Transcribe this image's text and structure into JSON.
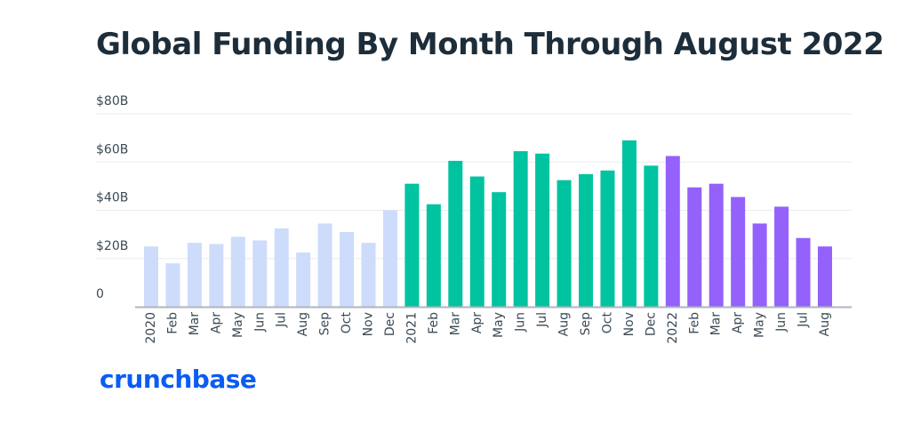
{
  "title": "Global Funding By Month Through August 2022",
  "brand": "crunchbase",
  "colors": {
    "2020": "#cddcfa",
    "2021": "#00c3a0",
    "2022": "#9461fb",
    "title": "#1d2d3a",
    "brand": "#0a5cf5",
    "grid": "#e9ecef",
    "axis": "#aeb6bd",
    "text": "#3b4a55"
  },
  "chart_data": {
    "type": "bar",
    "title": "Global Funding By Month Through August 2022",
    "y_tick_labels": [
      "0",
      "$20B",
      "$40B",
      "$60B",
      "$80B"
    ],
    "y_ticks": [
      0,
      20,
      40,
      60,
      80
    ],
    "ylim": [
      0,
      80
    ],
    "grid": true,
    "categories": [
      "2020",
      "Feb",
      "Mar",
      "Apr",
      "May",
      "Jun",
      "Jul",
      "Aug",
      "Sep",
      "Oct",
      "Nov",
      "Dec",
      "2021",
      "Feb",
      "Mar",
      "Apr",
      "May",
      "Jun",
      "Jul",
      "Aug",
      "Sep",
      "Oct",
      "Nov",
      "Dec",
      "2022",
      "Feb",
      "Mar",
      "Apr",
      "May",
      "Jun",
      "Jul",
      "Aug"
    ],
    "year_group": [
      "2020",
      "2020",
      "2020",
      "2020",
      "2020",
      "2020",
      "2020",
      "2020",
      "2020",
      "2020",
      "2020",
      "2020",
      "2021",
      "2021",
      "2021",
      "2021",
      "2021",
      "2021",
      "2021",
      "2021",
      "2021",
      "2021",
      "2021",
      "2021",
      "2022",
      "2022",
      "2022",
      "2022",
      "2022",
      "2022",
      "2022",
      "2022"
    ],
    "values": [
      25,
      18,
      26.5,
      26,
      29,
      27.5,
      32.5,
      22.5,
      34.5,
      31,
      26.5,
      40,
      51,
      42.5,
      60.5,
      54,
      47.5,
      64.5,
      63.5,
      52.5,
      55,
      56.5,
      69,
      58.5,
      62.5,
      49.5,
      51,
      45.5,
      34.5,
      41.5,
      28.5,
      25
    ]
  }
}
